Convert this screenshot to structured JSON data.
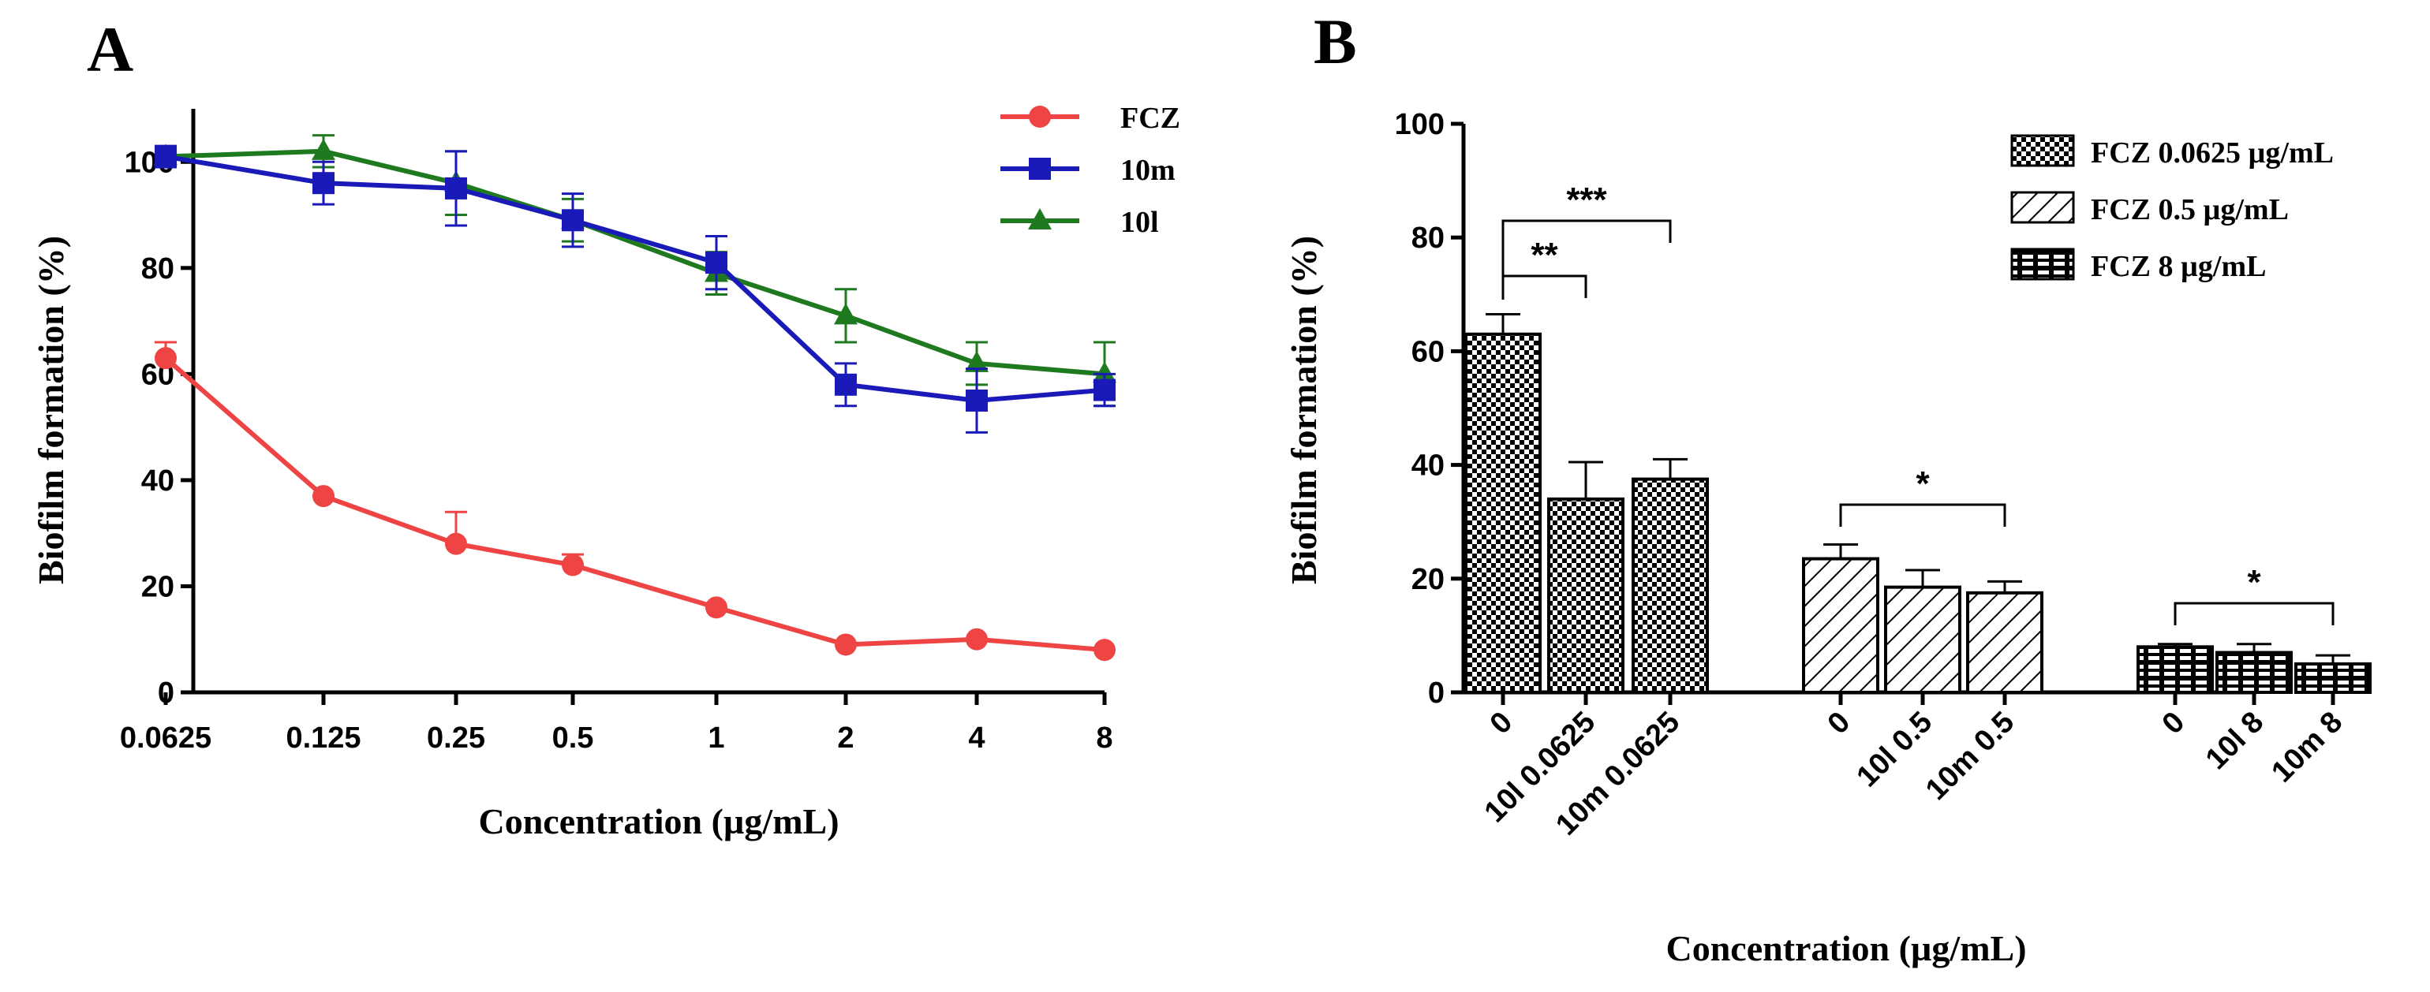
{
  "chart_data": [
    {
      "panel": "A",
      "type": "line",
      "xlabel": "Concentration (µg/mL)",
      "ylabel": "Biofilm formation (%)",
      "categories": [
        "0.0625",
        "0.125",
        "0.25",
        "0.5",
        "1",
        "2",
        "4",
        "8"
      ],
      "ylim": [
        0,
        110
      ],
      "yticks": [
        "0",
        "20",
        "40",
        "60",
        "80",
        "100"
      ],
      "series": [
        {
          "name": "FCZ",
          "color": "#ef4444",
          "marker": "circle",
          "values": [
            63,
            37,
            28,
            24,
            16,
            9,
            10,
            8
          ],
          "errors": [
            3,
            0,
            6,
            2,
            0,
            0,
            0,
            0
          ]
        },
        {
          "name": "10m",
          "color": "#1a1ab8",
          "marker": "square",
          "values": [
            101,
            96,
            95,
            89,
            81,
            58,
            55,
            57
          ],
          "errors": [
            2,
            4,
            7,
            5,
            5,
            4,
            6,
            3
          ]
        },
        {
          "name": "10l",
          "color": "#1f7a1f",
          "marker": "triangle",
          "values": [
            101,
            102,
            96,
            89,
            79,
            71,
            62,
            60
          ],
          "errors": [
            1,
            3,
            6,
            4,
            4,
            5,
            4,
            6
          ]
        }
      ],
      "legend_position": "top-right"
    },
    {
      "panel": "B",
      "type": "bar",
      "xlabel": "Concentration (µg/mL)",
      "ylabel": "Biofilm formation (%)",
      "ylim": [
        0,
        100
      ],
      "yticks": [
        "0",
        "20",
        "40",
        "60",
        "80",
        "100"
      ],
      "groups": [
        {
          "name": "FCZ 0.0625 µg/mL",
          "pattern": "checker",
          "categories": [
            "0",
            "10l 0.0625",
            "10m 0.0625"
          ],
          "values": [
            63,
            34,
            37.5
          ],
          "errors": [
            3.5,
            6.5,
            3.5
          ]
        },
        {
          "name": "FCZ 0.5 µg/mL",
          "pattern": "hatch",
          "categories": [
            "0",
            "10l 0.5",
            "10m 0.5"
          ],
          "values": [
            23.5,
            18.5,
            17.5
          ],
          "errors": [
            2.5,
            3,
            2
          ]
        },
        {
          "name": "FCZ 8 µg/mL",
          "pattern": "dots",
          "categories": [
            "0",
            "10l 8",
            "10m 8"
          ],
          "values": [
            8,
            7,
            5
          ],
          "errors": [
            0.5,
            1.5,
            1.5
          ]
        }
      ],
      "significance": [
        {
          "group": 0,
          "from": 0,
          "to": 1,
          "label": "**"
        },
        {
          "group": 0,
          "from": 0,
          "to": 2,
          "label": "***"
        },
        {
          "group": 1,
          "from": 0,
          "to": 2,
          "label": "*"
        },
        {
          "group": 2,
          "from": 0,
          "to": 2,
          "label": "*"
        }
      ],
      "legend_position": "top-right"
    }
  ]
}
